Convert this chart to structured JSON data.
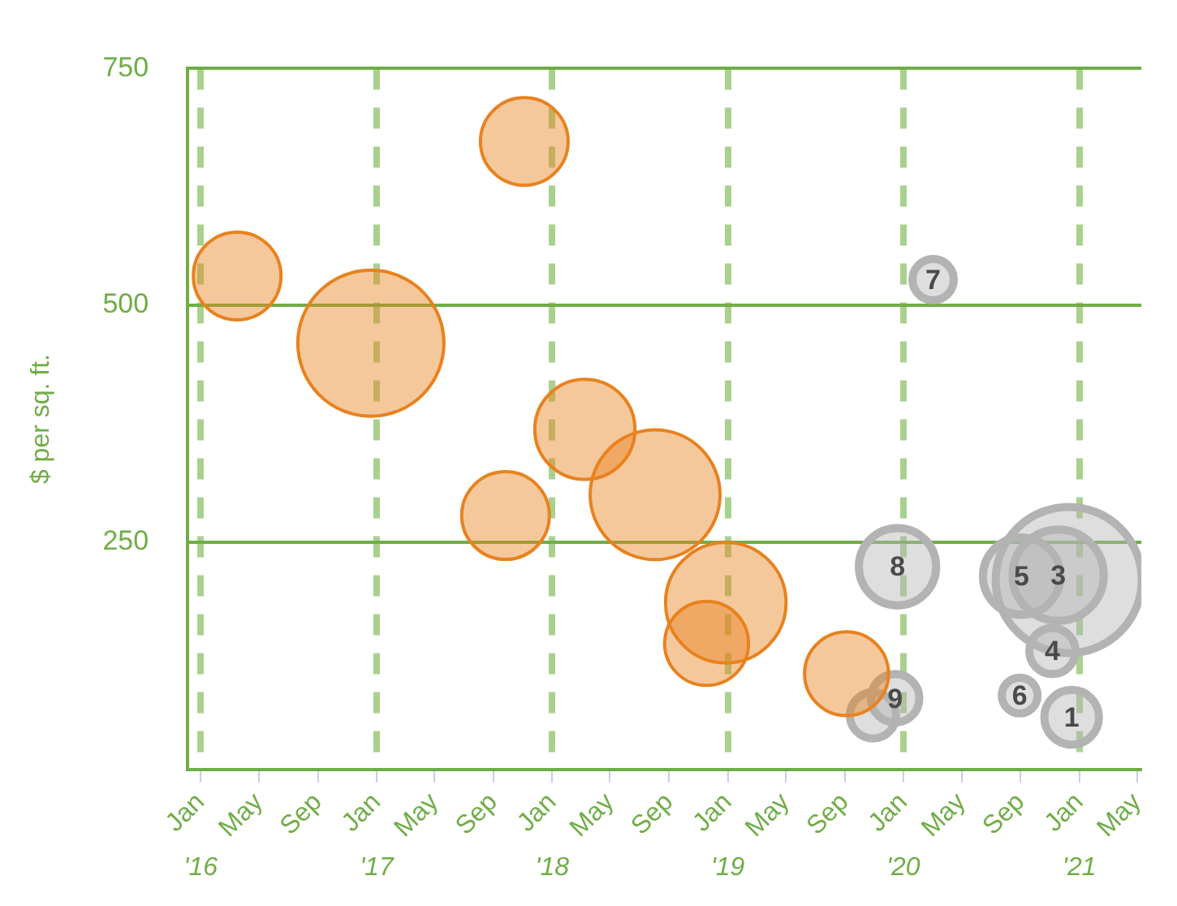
{
  "chart_data": {
    "type": "bubble",
    "ylabel": "$ per sq. ft.",
    "annotations": [
      {
        "text": "7",
        "x": "2020-03-03",
        "y": 527
      },
      {
        "text": "8",
        "x": "2019-12-20",
        "y": 224
      },
      {
        "text": "5",
        "x": "2020-09-03",
        "y": 214
      },
      {
        "text": "3",
        "x": "2020-11-18",
        "y": 215
      },
      {
        "text": "4",
        "x": "2020-11-06",
        "y": 135
      },
      {
        "text": "6",
        "x": "2020-08-30",
        "y": 88
      },
      {
        "text": "1",
        "x": "2020-12-16",
        "y": 65
      },
      {
        "text": "9",
        "x": "2019-12-15",
        "y": 85
      }
    ],
    "xlim": [
      "2015-12-05",
      "2021-05-10"
    ],
    "xticks": [
      {
        "value": "2016-01",
        "label": "Jan"
      },
      {
        "value": "2016-05",
        "label": "May"
      },
      {
        "value": "2016-09",
        "label": "Sep"
      },
      {
        "value": "2017-01",
        "label": "Jan"
      },
      {
        "value": "2017-05",
        "label": "May"
      },
      {
        "value": "2017-09",
        "label": "Sep"
      },
      {
        "value": "2018-01",
        "label": "Jan"
      },
      {
        "value": "2018-05",
        "label": "May"
      },
      {
        "value": "2018-09",
        "label": "Sep"
      },
      {
        "value": "2019-01",
        "label": "Jan"
      },
      {
        "value": "2019-05",
        "label": "May"
      },
      {
        "value": "2019-09",
        "label": "Sep"
      },
      {
        "value": "2020-01",
        "label": "Jan"
      },
      {
        "value": "2020-05",
        "label": "May"
      },
      {
        "value": "2020-09",
        "label": "Sep"
      },
      {
        "value": "2021-01",
        "label": "Jan"
      },
      {
        "value": "2021-05",
        "label": "May"
      }
    ],
    "x2lim": [
      "2015-12-05",
      "2021-05-10"
    ],
    "x2ticks": [
      {
        "value": "2016-01",
        "label": "'16"
      },
      {
        "value": "2017-01",
        "label": "'17"
      },
      {
        "value": "2018-01",
        "label": "'18"
      },
      {
        "value": "2019-01",
        "label": "'19"
      },
      {
        "value": "2020-01",
        "label": "'20"
      },
      {
        "value": "2021-01",
        "label": "'21"
      }
    ],
    "ylim": [
      10,
      750
    ],
    "yticks": [
      250,
      500,
      750
    ],
    "grid": true,
    "legend": false,
    "series": [
      {
        "color": "#e8821e",
        "x": [
          "2016-03-17",
          "2016-12-20",
          "2017-11-04",
          "2017-09-26",
          "2018-03-10",
          "2018-08-03",
          "2018-12-28",
          "2018-11-18",
          "2019-09-05"
        ],
        "values": [
          531,
          460,
          673,
          278,
          369,
          300,
          186,
          143,
          111
        ],
        "sizes": [
          0.36,
          1,
          0.36,
          0.36,
          0.47,
          0.79,
          0.68,
          0.33,
          0.33
        ]
      },
      {
        "color": "#b3b3b3",
        "x": [
          "2020-12-10",
          "2020-03-03",
          "2019-12-20",
          "2020-09-03",
          "2020-11-18",
          "2020-11-06",
          "2020-08-30",
          "2020-12-16",
          "2019-10-30",
          "2019-12-15"
        ],
        "values": [
          210,
          527,
          224,
          214,
          215,
          135,
          88,
          65,
          67,
          85
        ],
        "sizes": [
          1,
          0.08,
          0.28,
          0.28,
          0.39,
          0.1,
          0.06,
          0.14,
          0.1,
          0.11
        ]
      }
    ]
  }
}
